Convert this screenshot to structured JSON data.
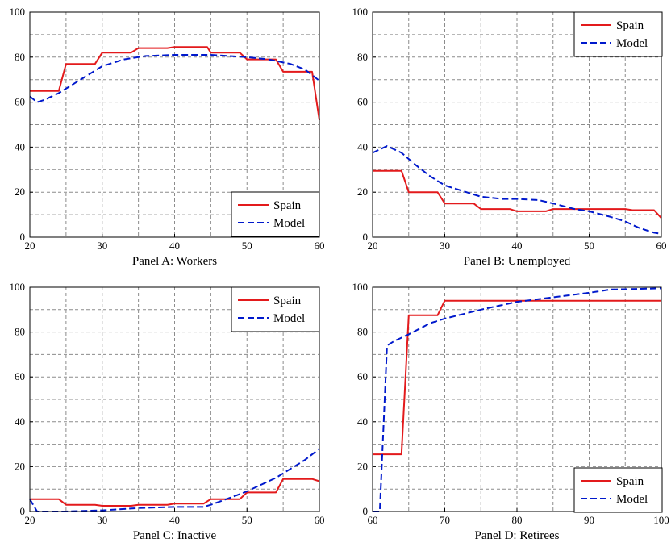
{
  "colors": {
    "spain": "#e31a1c",
    "model": "#0019cc",
    "grid": "#8c8c8c",
    "axis": "#000000"
  },
  "chart_data": [
    {
      "type": "line",
      "title": "Panel A: Workers",
      "xlim": [
        20,
        60
      ],
      "ylim": [
        0,
        100
      ],
      "xticks": [
        20,
        30,
        40,
        50,
        60
      ],
      "yticks": [
        0,
        20,
        40,
        60,
        80,
        100
      ],
      "grid": true,
      "legend": "bottom-right",
      "series": [
        {
          "name": "Spain",
          "style": "solid",
          "color": "#e31a1c",
          "points": [
            [
              20,
              65
            ],
            [
              24,
              65
            ],
            [
              25,
              77
            ],
            [
              29,
              77
            ],
            [
              30,
              82
            ],
            [
              34,
              82
            ],
            [
              35,
              84
            ],
            [
              39,
              84
            ],
            [
              40,
              84.5
            ],
            [
              44.5,
              84.5
            ],
            [
              45,
              82
            ],
            [
              49,
              82
            ],
            [
              50,
              79
            ],
            [
              54,
              79
            ],
            [
              55,
              73.5
            ],
            [
              59,
              73.5
            ],
            [
              60,
              52
            ]
          ]
        },
        {
          "name": "Model",
          "style": "dashed",
          "color": "#0019cc",
          "points": [
            [
              20,
              62.5
            ],
            [
              21,
              60
            ],
            [
              22,
              61
            ],
            [
              24,
              64
            ],
            [
              26,
              68
            ],
            [
              28,
              72
            ],
            [
              30,
              76
            ],
            [
              33,
              79
            ],
            [
              36,
              80.5
            ],
            [
              40,
              81
            ],
            [
              45,
              81
            ],
            [
              50,
              80
            ],
            [
              53,
              79
            ],
            [
              56,
              77
            ],
            [
              58,
              74.5
            ],
            [
              60,
              69.5
            ]
          ]
        }
      ]
    },
    {
      "type": "line",
      "title": "Panel B: Unemployed",
      "xlim": [
        20,
        60
      ],
      "ylim": [
        0,
        100
      ],
      "xticks": [
        20,
        30,
        40,
        50,
        60
      ],
      "yticks": [
        0,
        20,
        40,
        60,
        80,
        100
      ],
      "grid": true,
      "legend": "top-right",
      "series": [
        {
          "name": "Spain",
          "style": "solid",
          "color": "#e31a1c",
          "points": [
            [
              20,
              29.5
            ],
            [
              24,
              29.5
            ],
            [
              25,
              20
            ],
            [
              29,
              20
            ],
            [
              30,
              15
            ],
            [
              34,
              15
            ],
            [
              35,
              12.5
            ],
            [
              39,
              12.5
            ],
            [
              40,
              11.5
            ],
            [
              44,
              11.5
            ],
            [
              45,
              12.5
            ],
            [
              55,
              12.5
            ],
            [
              56,
              12
            ],
            [
              59,
              12
            ],
            [
              60,
              8.5
            ]
          ]
        },
        {
          "name": "Model",
          "style": "dashed",
          "color": "#0019cc",
          "points": [
            [
              20,
              37.5
            ],
            [
              22,
              40.5
            ],
            [
              24,
              37.5
            ],
            [
              26,
              32
            ],
            [
              28,
              27
            ],
            [
              30,
              23
            ],
            [
              33,
              20
            ],
            [
              35,
              18
            ],
            [
              38,
              17
            ],
            [
              40,
              17
            ],
            [
              43,
              16.5
            ],
            [
              45,
              15
            ],
            [
              48,
              12.5
            ],
            [
              50,
              11.5
            ],
            [
              53,
              9
            ],
            [
              55,
              7
            ],
            [
              57,
              4
            ],
            [
              59,
              2
            ],
            [
              60,
              1.5
            ]
          ]
        }
      ]
    },
    {
      "type": "line",
      "title": "Panel C: Inactive",
      "xlim": [
        20,
        60
      ],
      "ylim": [
        0,
        100
      ],
      "xticks": [
        20,
        30,
        40,
        50,
        60
      ],
      "yticks": [
        0,
        20,
        40,
        60,
        80,
        100
      ],
      "grid": true,
      "legend": "top-right",
      "series": [
        {
          "name": "Spain",
          "style": "solid",
          "color": "#e31a1c",
          "points": [
            [
              20,
              5.5
            ],
            [
              24,
              5.5
            ],
            [
              25,
              3
            ],
            [
              29,
              3
            ],
            [
              30,
              2.5
            ],
            [
              34,
              2.5
            ],
            [
              35,
              3
            ],
            [
              39,
              3
            ],
            [
              40,
              3.5
            ],
            [
              44,
              3.5
            ],
            [
              45,
              5.5
            ],
            [
              49,
              5.5
            ],
            [
              50,
              8.5
            ],
            [
              54,
              8.5
            ],
            [
              55,
              14.5
            ],
            [
              59,
              14.5
            ],
            [
              60,
              13.5
            ]
          ]
        },
        {
          "name": "Model",
          "style": "dashed",
          "color": "#0019cc",
          "points": [
            [
              20,
              5.5
            ],
            [
              21,
              0
            ],
            [
              25,
              0
            ],
            [
              30,
              0.5
            ],
            [
              35,
              1.5
            ],
            [
              40,
              2
            ],
            [
              44,
              2
            ],
            [
              45,
              3
            ],
            [
              48,
              6.5
            ],
            [
              50,
              9
            ],
            [
              52,
              12
            ],
            [
              54,
              15
            ],
            [
              56,
              19
            ],
            [
              58,
              23
            ],
            [
              60,
              28
            ]
          ]
        }
      ]
    },
    {
      "type": "line",
      "title": "Panel D: Retirees",
      "xlim": [
        60,
        100
      ],
      "ylim": [
        0,
        100
      ],
      "xticks": [
        60,
        70,
        80,
        90,
        100
      ],
      "yticks": [
        0,
        20,
        40,
        60,
        80,
        100
      ],
      "grid": true,
      "legend": "bottom-right",
      "series": [
        {
          "name": "Spain",
          "style": "solid",
          "color": "#e31a1c",
          "points": [
            [
              60,
              25.5
            ],
            [
              64,
              25.5
            ],
            [
              65,
              87.5
            ],
            [
              69,
              87.5
            ],
            [
              70,
              94
            ],
            [
              100,
              94
            ]
          ]
        },
        {
          "name": "Model",
          "style": "dashed",
          "color": "#0019cc",
          "points": [
            [
              60,
              0
            ],
            [
              61,
              0
            ],
            [
              62,
              74
            ],
            [
              63,
              76
            ],
            [
              65,
              79
            ],
            [
              68,
              84
            ],
            [
              70,
              86
            ],
            [
              75,
              90
            ],
            [
              80,
              93.5
            ],
            [
              85,
              95.5
            ],
            [
              90,
              97.5
            ],
            [
              93,
              99
            ],
            [
              100,
              99.5
            ]
          ]
        }
      ]
    }
  ]
}
